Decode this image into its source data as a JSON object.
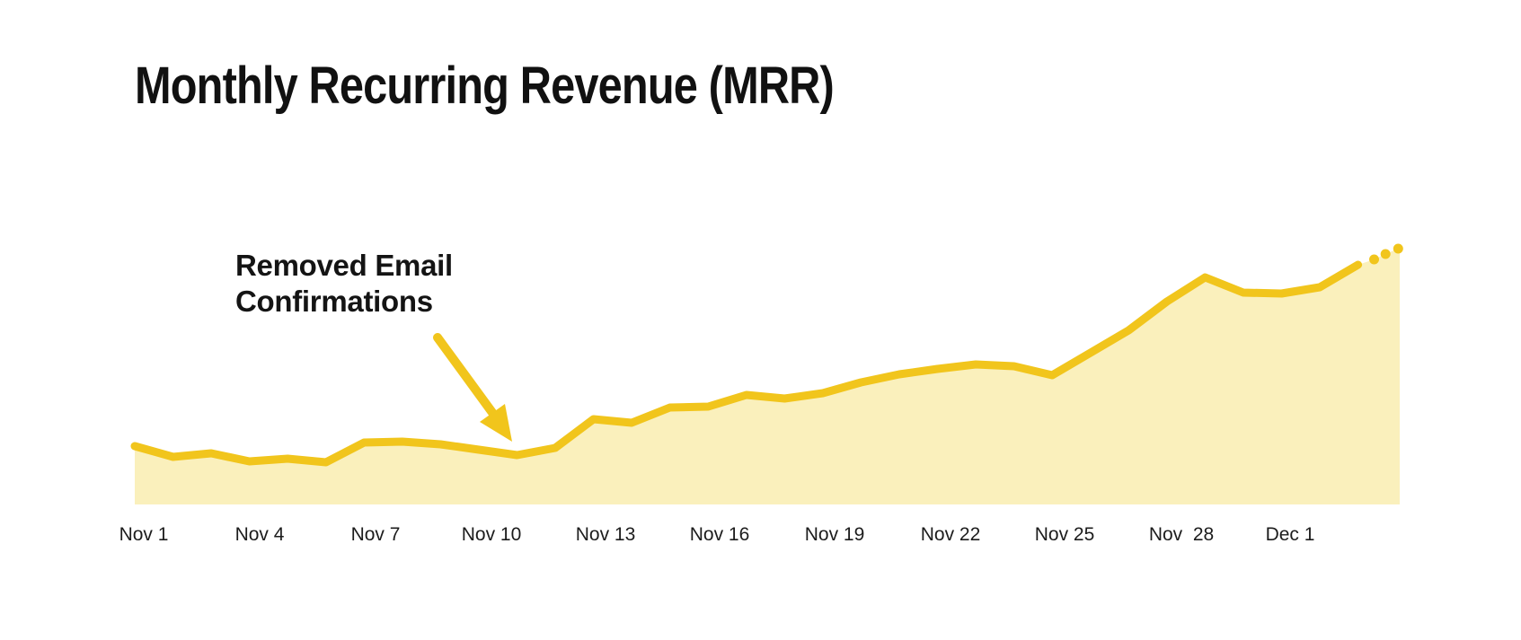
{
  "header": {
    "title": "Monthly Recurring Revenue (MRR)"
  },
  "annotation": {
    "line1": "Removed Email",
    "line2": "Confirmations",
    "full_text": "Removed Email Confirmations"
  },
  "xaxis": {
    "ticks": [
      {
        "label": "Nov 1"
      },
      {
        "label": "Nov 4"
      },
      {
        "label": "Nov 7"
      },
      {
        "label": "Nov 10"
      },
      {
        "label": "Nov 13"
      },
      {
        "label": "Nov 16"
      },
      {
        "label": "Nov 19"
      },
      {
        "label": "Nov 22"
      },
      {
        "label": "Nov 25"
      },
      {
        "label": "Nov  28"
      },
      {
        "label": "Dec 1"
      }
    ]
  },
  "colors": {
    "line": "#F1C51C",
    "area_fill": "#FAF0BC",
    "arrow": "#F1C51C",
    "projection_dots": "#F1C51C",
    "text": "#141414",
    "background": "#FFFFFF"
  },
  "chart_data": {
    "type": "area",
    "title": "Monthly Recurring Revenue (MRR)",
    "xlabel": "",
    "ylabel": "",
    "x_tick_labels": [
      "Nov 1",
      "Nov 4",
      "Nov 7",
      "Nov 10",
      "Nov 13",
      "Nov 16",
      "Nov 19",
      "Nov 22",
      "Nov 25",
      "Nov  28",
      "Dec 1"
    ],
    "y_axis_visible": false,
    "grid": false,
    "legend": "none",
    "units": "relative MRR (no y-axis scale shown in image)",
    "ylim": [
      0,
      300
    ],
    "series": [
      {
        "name": "MRR",
        "points": [
          {
            "date": "Nov 1",
            "value": 65
          },
          {
            "date": "Nov 2",
            "value": 53
          },
          {
            "date": "Nov 3",
            "value": 57
          },
          {
            "date": "Nov 4",
            "value": 48
          },
          {
            "date": "Nov 5",
            "value": 51
          },
          {
            "date": "Nov 6",
            "value": 47
          },
          {
            "date": "Nov 7",
            "value": 69
          },
          {
            "date": "Nov 8",
            "value": 70
          },
          {
            "date": "Nov 9",
            "value": 67
          },
          {
            "date": "Nov 10",
            "value": 61
          },
          {
            "date": "Nov 11",
            "value": 55
          },
          {
            "date": "Nov 12",
            "value": 63
          },
          {
            "date": "Nov 13",
            "value": 95
          },
          {
            "date": "Nov 14",
            "value": 91
          },
          {
            "date": "Nov 15",
            "value": 108
          },
          {
            "date": "Nov 16",
            "value": 109
          },
          {
            "date": "Nov 17",
            "value": 122
          },
          {
            "date": "Nov 18",
            "value": 118
          },
          {
            "date": "Nov 19",
            "value": 124
          },
          {
            "date": "Nov 20",
            "value": 136
          },
          {
            "date": "Nov 21",
            "value": 145
          },
          {
            "date": "Nov 22",
            "value": 151
          },
          {
            "date": "Nov 23",
            "value": 156
          },
          {
            "date": "Nov 24",
            "value": 154
          },
          {
            "date": "Nov 25",
            "value": 144
          },
          {
            "date": "Nov 26",
            "value": 169
          },
          {
            "date": "Nov 27",
            "value": 194
          },
          {
            "date": "Nov 28",
            "value": 226
          },
          {
            "date": "Nov 29",
            "value": 253
          },
          {
            "date": "Nov 30",
            "value": 236
          },
          {
            "date": "Dec 1",
            "value": 235
          },
          {
            "date": "Dec 2",
            "value": 242
          },
          {
            "date": "Dec 3",
            "value": 267
          }
        ]
      }
    ],
    "projection": {
      "style": "dotted",
      "points": [
        {
          "day_offset": 32.42,
          "value": 273
        },
        {
          "day_offset": 32.72,
          "value": 279
        },
        {
          "day_offset": 33.05,
          "value": 285
        }
      ]
    },
    "annotations": [
      {
        "type": "arrow-callout",
        "text": "Removed Email Confirmations",
        "points_to": "local dip just after Nov 10"
      }
    ]
  }
}
